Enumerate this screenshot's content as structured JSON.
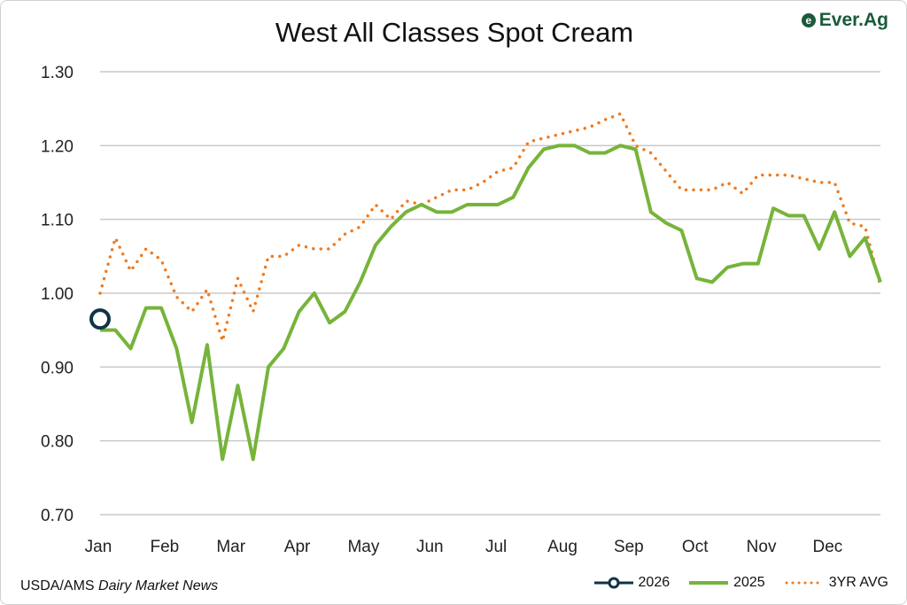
{
  "chart_data": {
    "type": "line",
    "title": "West All Classes Spot Cream",
    "xlabel": "",
    "ylabel": "",
    "ylim": [
      0.7,
      1.3
    ],
    "yticks": [
      "0.70",
      "0.80",
      "0.90",
      "1.00",
      "1.10",
      "1.20",
      "1.30"
    ],
    "ytick_values": [
      0.7,
      0.8,
      0.9,
      1.0,
      1.1,
      1.2,
      1.3
    ],
    "months": [
      "Jan",
      "Feb",
      "Mar",
      "Apr",
      "May",
      "Jun",
      "Jul",
      "Aug",
      "Sep",
      "Oct",
      "Nov",
      "Dec"
    ],
    "weeks_per_year": 52,
    "grid": true,
    "legend_position": "bottom-right",
    "series": [
      {
        "name": "2026",
        "color": "#0f3347",
        "style": "line-marker",
        "values": [
          0.965
        ]
      },
      {
        "name": "2025",
        "color": "#76b43a",
        "style": "solid",
        "values": [
          0.95,
          0.95,
          0.925,
          0.98,
          0.98,
          0.925,
          0.825,
          0.93,
          0.775,
          0.875,
          0.775,
          0.9,
          0.925,
          0.975,
          1.0,
          0.96,
          0.975,
          1.015,
          1.065,
          1.09,
          1.11,
          1.12,
          1.11,
          1.11,
          1.12,
          1.12,
          1.12,
          1.13,
          1.17,
          1.195,
          1.2,
          1.2,
          1.19,
          1.19,
          1.2,
          1.195,
          1.11,
          1.095,
          1.085,
          1.02,
          1.015,
          1.035,
          1.04,
          1.04,
          1.115,
          1.105,
          1.105,
          1.06,
          1.11,
          1.05,
          1.075,
          1.015
        ]
      },
      {
        "name": "3YR AVG",
        "color": "#f07a1f",
        "style": "dotted",
        "values": [
          1.0,
          1.075,
          1.03,
          1.06,
          1.045,
          0.995,
          0.975,
          1.005,
          0.935,
          1.02,
          0.975,
          1.05,
          1.05,
          1.065,
          1.06,
          1.06,
          1.08,
          1.09,
          1.12,
          1.1,
          1.125,
          1.12,
          1.13,
          1.14,
          1.14,
          1.15,
          1.165,
          1.17,
          1.205,
          1.21,
          1.215,
          1.22,
          1.225,
          1.235,
          1.243,
          1.2,
          1.19,
          1.165,
          1.14,
          1.14,
          1.14,
          1.15,
          1.135,
          1.16,
          1.16,
          1.16,
          1.155,
          1.15,
          1.15,
          1.095,
          1.09,
          1.01
        ]
      }
    ]
  },
  "source": {
    "prefix": "USDA/AMS ",
    "italic": "Dairy Market News"
  },
  "logo": {
    "text": "Ever.Ag"
  }
}
